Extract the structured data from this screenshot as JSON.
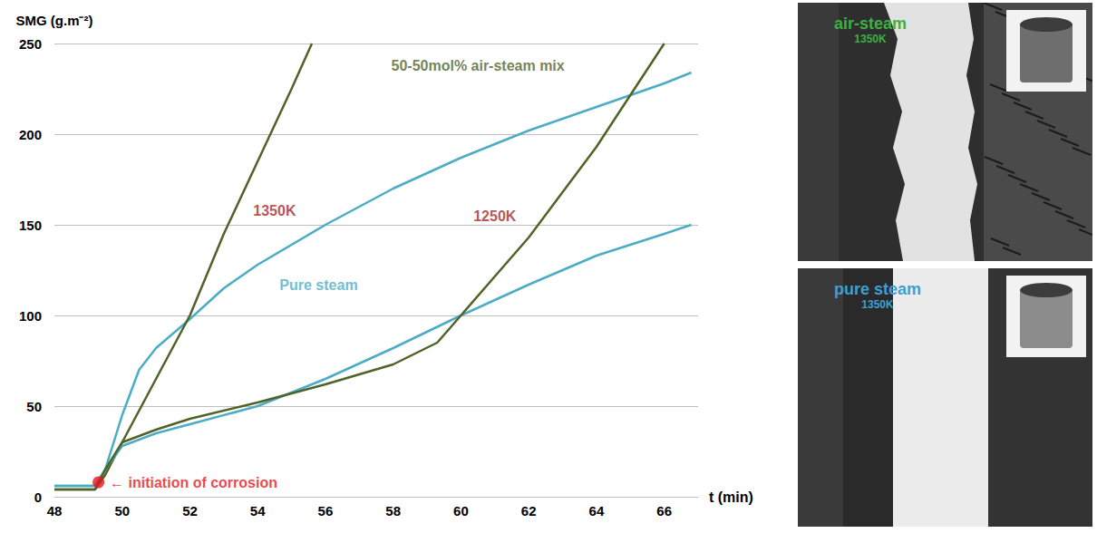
{
  "chart_data": {
    "type": "line",
    "y_label": "SMG (g.m⁻²)",
    "x_label": "t (min)",
    "xlim": [
      48,
      67
    ],
    "xticks": [
      48,
      50,
      52,
      54,
      56,
      58,
      60,
      62,
      64,
      66
    ],
    "ylim": [
      0,
      250
    ],
    "yticks": [
      0,
      50,
      100,
      150,
      200,
      250
    ],
    "grid": true,
    "series": [
      {
        "color": "#4bacc6",
        "x": [
          48,
          49.2,
          49.5,
          50,
          50.5,
          51,
          52,
          53,
          54,
          56,
          58,
          60,
          62,
          64,
          66,
          66.8
        ],
        "values": [
          6,
          6,
          15,
          45,
          70,
          82,
          98,
          115,
          128,
          150,
          170,
          187,
          202,
          215,
          228,
          234
        ]
      },
      {
        "color": "#4f6228",
        "x": [
          48,
          49.2,
          49.5,
          50,
          51,
          52,
          53,
          54,
          55,
          55.6
        ],
        "values": [
          4,
          4,
          12,
          30,
          65,
          100,
          145,
          185,
          225,
          250
        ]
      },
      {
        "color": "#4bacc6",
        "x": [
          48,
          49.2,
          49.5,
          50,
          51,
          52,
          54,
          56,
          58,
          60,
          62,
          64,
          66,
          66.8
        ],
        "values": [
          6,
          6,
          15,
          28,
          35,
          40,
          50,
          65,
          82,
          100,
          117,
          133,
          145,
          150
        ]
      },
      {
        "color": "#4f6228",
        "x": [
          48,
          49.2,
          49.5,
          50,
          51,
          52,
          54,
          56,
          58,
          59.3,
          60,
          62,
          64,
          66
        ],
        "values": [
          4,
          4,
          15,
          30,
          37,
          43,
          52,
          62,
          73,
          85,
          100,
          143,
          193,
          250
        ]
      }
    ],
    "annotations": [
      {
        "text": "50-50mol% air-steam mix",
        "x": 60.5,
        "y": 238,
        "color": "#4f6228"
      },
      {
        "text": "1350K",
        "x": 54.5,
        "y": 158,
        "color": "#a5282a"
      },
      {
        "text": "1250K",
        "x": 61.0,
        "y": 155,
        "color": "#a5282a"
      },
      {
        "text": "Pure steam",
        "x": 55.8,
        "y": 117,
        "color": "#4bacc6"
      },
      {
        "text": "← initiation of corrosion",
        "x": 49.3,
        "y": 8,
        "color": "#e8141b",
        "marker": "circle"
      }
    ]
  },
  "micrographs": [
    {
      "label": "air-steam",
      "sublabel": "1350K",
      "color": "#3cb043"
    },
    {
      "label": "pure steam",
      "sublabel": "1350K",
      "color": "#3aa0d8"
    }
  ]
}
